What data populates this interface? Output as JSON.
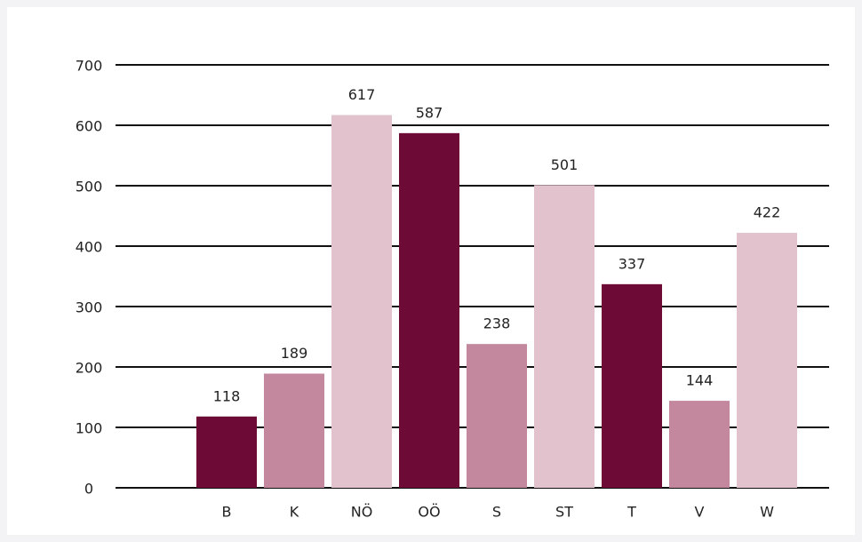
{
  "chart_data": {
    "type": "bar",
    "categories": [
      "B",
      "K",
      "NÖ",
      "OÖ",
      "S",
      "ST",
      "T",
      "V",
      "W"
    ],
    "values": [
      118,
      189,
      617,
      587,
      238,
      501,
      337,
      144,
      422
    ],
    "colors": [
      "#6e0a36",
      "#c4889e",
      "#e2c3cd",
      "#6e0a36",
      "#c4889e",
      "#e2c3cd",
      "#6e0a36",
      "#c4889e",
      "#e2c3cd"
    ],
    "ylim": [
      0,
      700
    ],
    "yticks": [
      0,
      100,
      200,
      300,
      400,
      500,
      600,
      700
    ],
    "grid": true
  }
}
